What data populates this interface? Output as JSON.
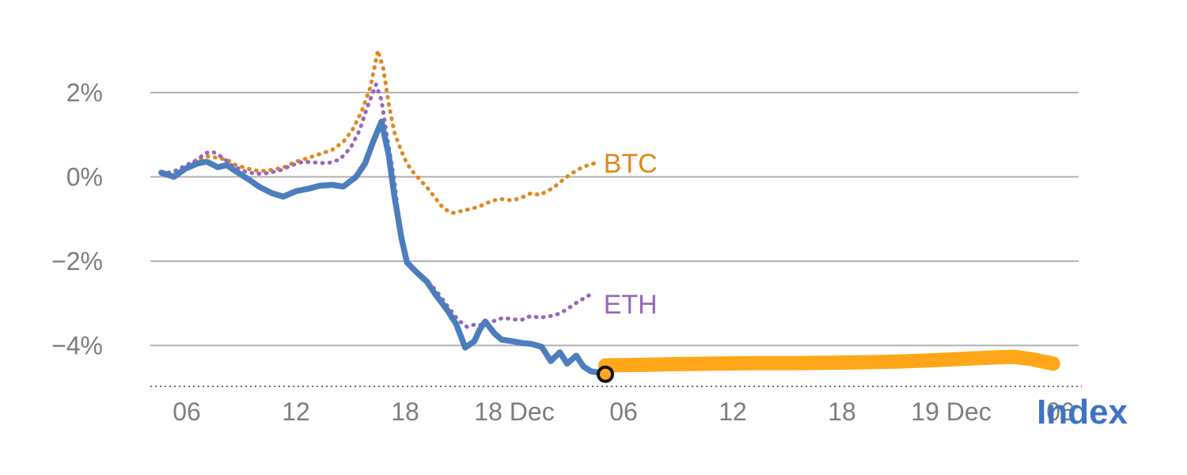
{
  "page": {
    "background": "#ffffff"
  },
  "chart": {
    "grid_color": "#b1b1b1",
    "axis_text_color": "#7d7d7d",
    "baseline_color": "#4d4d4d"
  },
  "chart_data": {
    "type": "line",
    "title": "",
    "x_axis": {
      "unit": "hours since 17 Dec 00:00",
      "range": [
        4,
        55
      ],
      "ticks": [
        {
          "pos": 6,
          "label": "06"
        },
        {
          "pos": 12,
          "label": "12"
        },
        {
          "pos": 18,
          "label": "18"
        },
        {
          "pos": 24,
          "label": "18 Dec"
        },
        {
          "pos": 30,
          "label": "06"
        },
        {
          "pos": 36,
          "label": "12"
        },
        {
          "pos": 42,
          "label": "18"
        },
        {
          "pos": 48,
          "label": "19 Dec"
        },
        {
          "pos": 54,
          "label": "06"
        }
      ]
    },
    "y_axis": {
      "unit": "percent change",
      "range": [
        -5.4,
        3.5
      ],
      "baseline": -4.97,
      "ticks": [
        {
          "pos": 2,
          "label": "2%"
        },
        {
          "pos": 0,
          "label": "0%"
        },
        {
          "pos": -2,
          "label": "−2%"
        },
        {
          "pos": -4,
          "label": "−4%"
        }
      ]
    },
    "series": [
      {
        "id": "btc",
        "name": "BTC",
        "color": "#E2861B",
        "style": "dotted",
        "width": 5,
        "points": [
          [
            4.6,
            0.09
          ],
          [
            5.3,
            0.07
          ],
          [
            5.9,
            0.22
          ],
          [
            6.6,
            0.41
          ],
          [
            7.1,
            0.49
          ],
          [
            7.7,
            0.45
          ],
          [
            8.2,
            0.41
          ],
          [
            8.7,
            0.28
          ],
          [
            9.4,
            0.19
          ],
          [
            10.0,
            0.13
          ],
          [
            10.7,
            0.17
          ],
          [
            11.3,
            0.22
          ],
          [
            12.0,
            0.36
          ],
          [
            12.7,
            0.45
          ],
          [
            13.3,
            0.54
          ],
          [
            14.0,
            0.64
          ],
          [
            14.6,
            0.83
          ],
          [
            15.1,
            1.11
          ],
          [
            15.6,
            1.54
          ],
          [
            16.1,
            2.14
          ],
          [
            16.5,
            3.0
          ],
          [
            16.8,
            2.57
          ],
          [
            17.1,
            1.73
          ],
          [
            17.4,
            1.07
          ],
          [
            17.8,
            0.6
          ],
          [
            18.1,
            0.32
          ],
          [
            18.4,
            0.13
          ],
          [
            18.8,
            -0.06
          ],
          [
            19.3,
            -0.3
          ],
          [
            19.7,
            -0.53
          ],
          [
            20.1,
            -0.75
          ],
          [
            20.6,
            -0.86
          ],
          [
            21.1,
            -0.81
          ],
          [
            21.7,
            -0.75
          ],
          [
            22.2,
            -0.68
          ],
          [
            22.8,
            -0.56
          ],
          [
            23.3,
            -0.53
          ],
          [
            23.9,
            -0.56
          ],
          [
            24.4,
            -0.49
          ],
          [
            24.9,
            -0.39
          ],
          [
            25.4,
            -0.43
          ],
          [
            25.8,
            -0.34
          ],
          [
            26.2,
            -0.24
          ],
          [
            26.7,
            -0.06
          ],
          [
            27.1,
            0.07
          ],
          [
            27.7,
            0.22
          ],
          [
            28.2,
            0.3
          ],
          [
            28.6,
            0.34
          ]
        ]
      },
      {
        "id": "eth",
        "name": "ETH",
        "color": "#9467BD",
        "style": "dotted",
        "width": 5,
        "points": [
          [
            4.6,
            0.07
          ],
          [
            5.3,
            0.13
          ],
          [
            5.9,
            0.26
          ],
          [
            6.6,
            0.41
          ],
          [
            7.0,
            0.56
          ],
          [
            7.4,
            0.6
          ],
          [
            8.0,
            0.45
          ],
          [
            8.5,
            0.26
          ],
          [
            9.2,
            0.13
          ],
          [
            9.8,
            0.07
          ],
          [
            10.5,
            0.09
          ],
          [
            11.1,
            0.15
          ],
          [
            11.8,
            0.28
          ],
          [
            12.4,
            0.36
          ],
          [
            13.1,
            0.34
          ],
          [
            13.7,
            0.32
          ],
          [
            14.4,
            0.41
          ],
          [
            15.0,
            0.69
          ],
          [
            15.5,
            1.11
          ],
          [
            15.9,
            1.63
          ],
          [
            16.4,
            2.19
          ],
          [
            16.7,
            1.82
          ],
          [
            17.0,
            0.97
          ],
          [
            17.4,
            -0.06
          ],
          [
            17.7,
            -1.18
          ],
          [
            18.0,
            -1.93
          ],
          [
            18.4,
            -2.21
          ],
          [
            18.9,
            -2.36
          ],
          [
            19.4,
            -2.55
          ],
          [
            19.9,
            -2.81
          ],
          [
            20.4,
            -3.11
          ],
          [
            20.9,
            -3.39
          ],
          [
            21.4,
            -3.56
          ],
          [
            21.9,
            -3.49
          ],
          [
            22.3,
            -3.53
          ],
          [
            22.8,
            -3.43
          ],
          [
            23.4,
            -3.34
          ],
          [
            23.9,
            -3.38
          ],
          [
            24.4,
            -3.39
          ],
          [
            24.9,
            -3.3
          ],
          [
            25.4,
            -3.34
          ],
          [
            26.0,
            -3.3
          ],
          [
            26.5,
            -3.24
          ],
          [
            27.0,
            -3.11
          ],
          [
            27.5,
            -2.96
          ],
          [
            28.1,
            -2.81
          ]
        ]
      },
      {
        "id": "index_forecast",
        "name": "Index forecast band",
        "color": "#FFA718",
        "style": "band",
        "width": 18,
        "points": [
          [
            29.0,
            -4.47
          ],
          [
            31.0,
            -4.46
          ],
          [
            33.0,
            -4.44
          ],
          [
            35.0,
            -4.43
          ],
          [
            37.0,
            -4.42
          ],
          [
            39.0,
            -4.42
          ],
          [
            41.0,
            -4.41
          ],
          [
            43.0,
            -4.4
          ],
          [
            45.0,
            -4.38
          ],
          [
            47.0,
            -4.35
          ],
          [
            49.0,
            -4.31
          ],
          [
            50.5,
            -4.28
          ],
          [
            51.5,
            -4.27
          ],
          [
            52.5,
            -4.33
          ],
          [
            53.6,
            -4.43
          ]
        ]
      },
      {
        "id": "index",
        "name": "Index",
        "color": "#4C7EBD",
        "style": "solid",
        "width": 7.5,
        "points": [
          [
            4.6,
            0.1
          ],
          [
            5.3,
            0.0
          ],
          [
            5.9,
            0.19
          ],
          [
            6.6,
            0.32
          ],
          [
            7.1,
            0.36
          ],
          [
            7.7,
            0.23
          ],
          [
            8.2,
            0.28
          ],
          [
            8.7,
            0.13
          ],
          [
            9.4,
            -0.06
          ],
          [
            10.0,
            -0.24
          ],
          [
            10.7,
            -0.39
          ],
          [
            11.3,
            -0.47
          ],
          [
            12.0,
            -0.34
          ],
          [
            12.7,
            -0.28
          ],
          [
            13.3,
            -0.21
          ],
          [
            14.0,
            -0.19
          ],
          [
            14.6,
            -0.23
          ],
          [
            15.3,
            0.0
          ],
          [
            15.8,
            0.32
          ],
          [
            16.2,
            0.79
          ],
          [
            16.7,
            1.31
          ],
          [
            17.1,
            0.51
          ],
          [
            17.4,
            -0.43
          ],
          [
            17.8,
            -1.46
          ],
          [
            18.1,
            -2.03
          ],
          [
            18.6,
            -2.25
          ],
          [
            19.2,
            -2.49
          ],
          [
            19.7,
            -2.81
          ],
          [
            20.3,
            -3.15
          ],
          [
            20.8,
            -3.49
          ],
          [
            21.3,
            -4.05
          ],
          [
            21.8,
            -3.9
          ],
          [
            22.1,
            -3.62
          ],
          [
            22.4,
            -3.43
          ],
          [
            22.9,
            -3.71
          ],
          [
            23.3,
            -3.86
          ],
          [
            23.9,
            -3.9
          ],
          [
            24.4,
            -3.94
          ],
          [
            24.9,
            -3.96
          ],
          [
            25.5,
            -4.03
          ],
          [
            26.0,
            -4.37
          ],
          [
            26.5,
            -4.16
          ],
          [
            26.9,
            -4.43
          ],
          [
            27.4,
            -4.24
          ],
          [
            27.8,
            -4.5
          ],
          [
            28.2,
            -4.61
          ],
          [
            28.7,
            -4.65
          ],
          [
            29.0,
            -4.68
          ]
        ]
      }
    ],
    "marker": {
      "x": 29.0,
      "y": -4.68,
      "fill": "#FFA718",
      "stroke": "#111111"
    },
    "annotations": {
      "btc_label": {
        "text": "BTC",
        "pos": [
          28.9,
          0.33
        ],
        "color": "#E2861B"
      },
      "eth_label": {
        "text": "ETH",
        "pos": [
          28.9,
          -3.02
        ],
        "color": "#9467BD"
      },
      "index_label": {
        "text": "Index",
        "pos": [
          52.7,
          -5.85
        ],
        "color": "#3E74C4"
      }
    },
    "legend_position": "inline-end-of-line",
    "grid": "horizontal-only"
  }
}
